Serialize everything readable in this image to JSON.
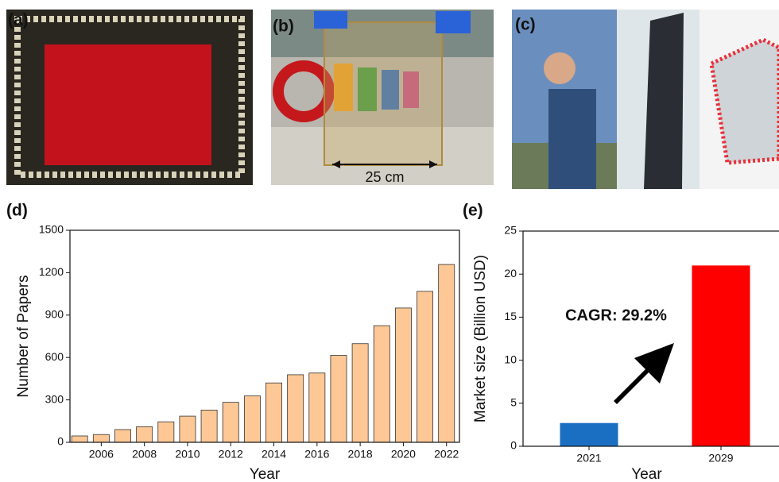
{
  "panels": [
    {
      "label": "(a)"
    },
    {
      "label": "(b)",
      "annotation": "25 cm"
    },
    {
      "label": "(c)"
    }
  ],
  "chart_data": [
    {
      "type": "bar",
      "label": "(d)",
      "x_label": "Year",
      "y_label": "Number of Papers",
      "x": [
        2005,
        2006,
        2007,
        2008,
        2009,
        2010,
        2011,
        2012,
        2013,
        2014,
        2015,
        2016,
        2017,
        2018,
        2019,
        2020,
        2021,
        2022
      ],
      "values": [
        45,
        55,
        90,
        110,
        145,
        185,
        228,
        283,
        328,
        420,
        478,
        490,
        615,
        698,
        825,
        950,
        1068,
        1258
      ],
      "color": "#fdc896",
      "xlim": [
        2004.55,
        2022.6
      ],
      "xticks": [
        2006,
        2008,
        2010,
        2012,
        2014,
        2016,
        2018,
        2020,
        2022
      ],
      "ylim": [
        0,
        1500
      ],
      "yticks": [
        0,
        300,
        600,
        900,
        1200,
        1500
      ]
    },
    {
      "type": "bar",
      "label": "(e)",
      "x_label": "Year",
      "y_label": "Market size (Billion USD)",
      "annotation": "CAGR: 29.2%",
      "categories": [
        "2021",
        "2029"
      ],
      "values": [
        2.7,
        21
      ],
      "colors": [
        "#1a6fc2",
        "#ff0000"
      ],
      "ylim": [
        0,
        25
      ],
      "yticks": [
        0,
        5,
        10,
        15,
        20,
        25
      ]
    }
  ]
}
